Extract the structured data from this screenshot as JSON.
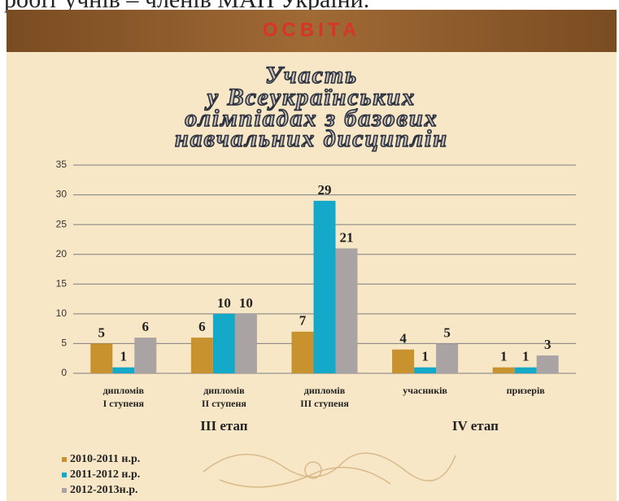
{
  "top_text": "робіт учнів – членів МАН України.",
  "header": "ОСВІТА",
  "chart_data": {
    "type": "bar",
    "title": [
      "Участь",
      "у Всеукраїнських",
      "олімпіадах з базових",
      "навчальних дисциплін"
    ],
    "categories": [
      [
        "дипломів",
        "І ступеня"
      ],
      [
        "дипломів",
        "ІІ ступеня"
      ],
      [
        "дипломів",
        "ІІІ ступеня"
      ],
      [
        "учасників"
      ],
      [
        "призерів"
      ]
    ],
    "group_labels": [
      "ІІІ етап",
      "ІV етап"
    ],
    "series": [
      {
        "name": "2010-2011 н.р.",
        "color": "#c8922e",
        "values": [
          5,
          6,
          7,
          4,
          1
        ]
      },
      {
        "name": "2011-2012 н.р.",
        "color": "#14a9c9",
        "values": [
          1,
          10,
          29,
          1,
          1
        ]
      },
      {
        "name": "2012-2013н.р.",
        "color": "#aaa3a3",
        "values": [
          6,
          10,
          21,
          5,
          3
        ]
      }
    ],
    "ylim": [
      0,
      35
    ],
    "yticks": [
      0,
      5,
      10,
      15,
      20,
      25,
      30,
      35
    ],
    "grid": true,
    "legend": "bottom-left"
  }
}
